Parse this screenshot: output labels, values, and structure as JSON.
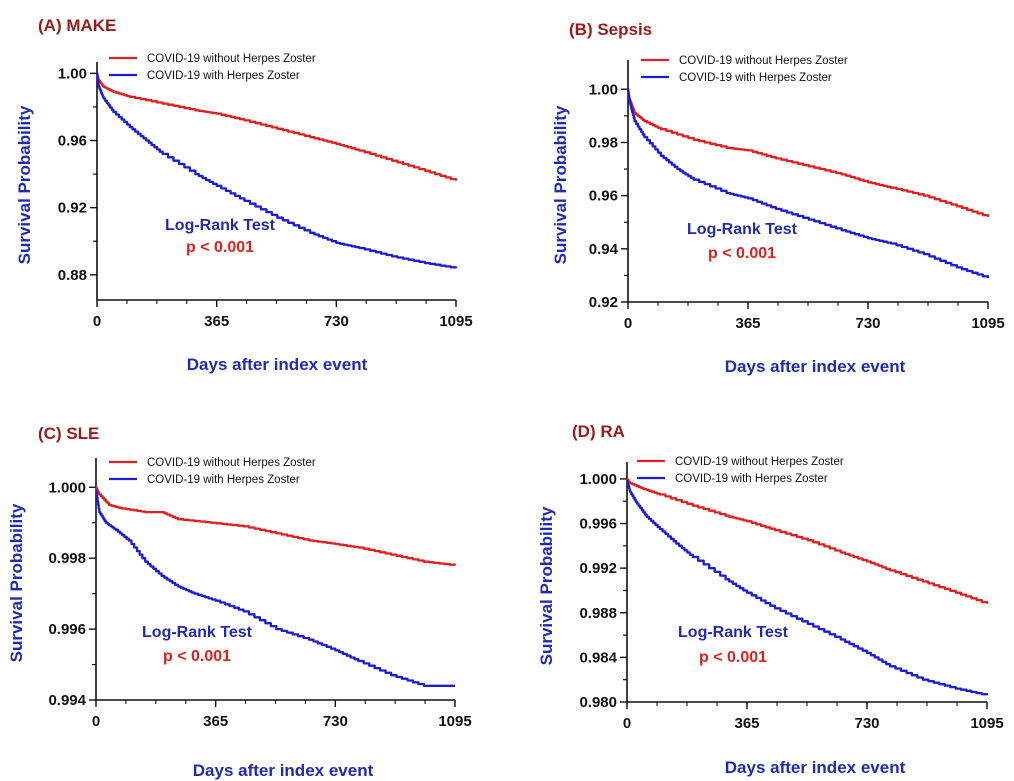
{
  "colors": {
    "title": "#9b1b1b",
    "axis_label": "#1f2bb3",
    "without": "#e02020",
    "with": "#1c1cd6",
    "log_rank": "#1f2bb3",
    "p_value": "#e02020",
    "axis": "#111111"
  },
  "chart_data": [
    {
      "type": "line",
      "panel_title": "(A) MAKE",
      "xlabel": "Days after index event",
      "ylabel": "Survival Probability",
      "xlim": [
        0,
        1095
      ],
      "ylim": [
        0.865,
        1.002
      ],
      "xticks": [
        "0",
        "365",
        "730",
        "1095"
      ],
      "yticks": [
        {
          "value": 1.0,
          "label": "1.00"
        },
        {
          "value": 0.96,
          "label": "0.96"
        },
        {
          "value": 0.92,
          "label": "0.92"
        },
        {
          "value": 0.88,
          "label": "0.88"
        }
      ],
      "grid": false,
      "legend_position": "top-left",
      "test_label": "Log-Rank Test",
      "p_value": "p < 0.001",
      "series": [
        {
          "name": "COVID-19 without Herpes Zoster",
          "color": "#e02020",
          "x": [
            0,
            5,
            20,
            50,
            100,
            200,
            300,
            365,
            450,
            550,
            650,
            730,
            800,
            900,
            1000,
            1095
          ],
          "y": [
            1.0,
            0.996,
            0.992,
            0.989,
            0.986,
            0.982,
            0.978,
            0.976,
            0.972,
            0.967,
            0.962,
            0.958,
            0.954,
            0.948,
            0.942,
            0.936
          ]
        },
        {
          "name": "COVID-19 with Herpes Zoster",
          "color": "#1c1cd6",
          "x": [
            0,
            5,
            20,
            50,
            100,
            150,
            200,
            300,
            365,
            450,
            550,
            650,
            730,
            800,
            900,
            1000,
            1095
          ],
          "y": [
            1.0,
            0.992,
            0.985,
            0.977,
            0.968,
            0.96,
            0.952,
            0.94,
            0.933,
            0.924,
            0.914,
            0.905,
            0.899,
            0.896,
            0.891,
            0.887,
            0.884
          ]
        }
      ]
    },
    {
      "type": "line",
      "panel_title": "(B) Sepsis",
      "xlabel": "Days after index event",
      "ylabel": "Survival Probability",
      "xlim": [
        0,
        1095
      ],
      "ylim": [
        0.92,
        1.008
      ],
      "xticks": [
        "0",
        "365",
        "730",
        "1095"
      ],
      "yticks": [
        {
          "value": 1.0,
          "label": "1.00"
        },
        {
          "value": 0.98,
          "label": "0.98"
        },
        {
          "value": 0.96,
          "label": "0.96"
        },
        {
          "value": 0.94,
          "label": "0.94"
        },
        {
          "value": 0.92,
          "label": "0.92"
        }
      ],
      "grid": false,
      "legend_position": "top-left",
      "test_label": "Log-Rank Test",
      "p_value": "p < 0.001",
      "series": [
        {
          "name": "COVID-19 without Herpes Zoster",
          "color": "#e02020",
          "x": [
            0,
            5,
            20,
            50,
            100,
            200,
            300,
            365,
            450,
            550,
            650,
            730,
            800,
            900,
            1000,
            1095
          ],
          "y": [
            1.0,
            0.996,
            0.991,
            0.988,
            0.985,
            0.981,
            0.978,
            0.977,
            0.974,
            0.971,
            0.968,
            0.965,
            0.963,
            0.96,
            0.956,
            0.952
          ]
        },
        {
          "name": "COVID-19 with Herpes Zoster",
          "color": "#1c1cd6",
          "x": [
            0,
            5,
            20,
            50,
            100,
            150,
            200,
            300,
            365,
            450,
            550,
            650,
            730,
            800,
            900,
            1000,
            1095
          ],
          "y": [
            1.0,
            0.995,
            0.988,
            0.982,
            0.975,
            0.97,
            0.966,
            0.961,
            0.959,
            0.955,
            0.951,
            0.947,
            0.944,
            0.942,
            0.938,
            0.933,
            0.929
          ]
        }
      ]
    },
    {
      "type": "line",
      "panel_title": "(C) SLE",
      "xlabel": "Days after index event",
      "ylabel": "Survival Probability",
      "xlim": [
        0,
        1095
      ],
      "ylim": [
        0.994,
        1.0006
      ],
      "xticks": [
        "0",
        "365",
        "730",
        "1095"
      ],
      "yticks": [
        {
          "value": 1.0,
          "label": "1.000"
        },
        {
          "value": 0.998,
          "label": "0.998"
        },
        {
          "value": 0.996,
          "label": "0.996"
        },
        {
          "value": 0.994,
          "label": "0.994"
        }
      ],
      "grid": false,
      "legend_position": "top-left",
      "test_label": "Log-Rank Test",
      "p_value": "p < 0.001",
      "series": [
        {
          "name": "COVID-19 without Herpes Zoster",
          "color": "#e02020",
          "x": [
            0,
            10,
            40,
            80,
            150,
            200,
            250,
            350,
            450,
            550,
            650,
            730,
            800,
            900,
            1000,
            1095
          ],
          "y": [
            1.0,
            0.9998,
            0.9995,
            0.9994,
            0.9993,
            0.9993,
            0.9991,
            0.999,
            0.9989,
            0.9987,
            0.9985,
            0.9984,
            0.9983,
            0.9981,
            0.9979,
            0.9978
          ]
        },
        {
          "name": "COVID-19 with Herpes Zoster",
          "color": "#1c1cd6",
          "x": [
            0,
            10,
            30,
            60,
            100,
            150,
            200,
            250,
            300,
            365,
            450,
            550,
            650,
            730,
            800,
            900,
            1000,
            1095
          ],
          "y": [
            0.9999,
            0.9993,
            0.999,
            0.9988,
            0.9985,
            0.9979,
            0.9975,
            0.9972,
            0.997,
            0.9968,
            0.9965,
            0.996,
            0.9957,
            0.9954,
            0.9951,
            0.9947,
            0.9944,
            0.9944
          ]
        }
      ]
    },
    {
      "type": "line",
      "panel_title": "(D) RA",
      "xlabel": "Days after index event",
      "ylabel": "Survival Probability",
      "xlim": [
        0,
        1095
      ],
      "ylim": [
        0.98,
        1.0008
      ],
      "xticks": [
        "0",
        "365",
        "730",
        "1095"
      ],
      "yticks": [
        {
          "value": 1.0,
          "label": "1.000"
        },
        {
          "value": 0.996,
          "label": "0.996"
        },
        {
          "value": 0.992,
          "label": "0.992"
        },
        {
          "value": 0.988,
          "label": "0.988"
        },
        {
          "value": 0.984,
          "label": "0.984"
        },
        {
          "value": 0.98,
          "label": "0.980"
        }
      ],
      "grid": false,
      "legend_position": "top-left",
      "test_label": "Log-Rank Test",
      "p_value": "p < 0.001",
      "series": [
        {
          "name": "COVID-19 without Herpes Zoster",
          "color": "#e02020",
          "x": [
            0,
            10,
            50,
            100,
            200,
            300,
            365,
            450,
            550,
            650,
            730,
            800,
            900,
            1000,
            1095
          ],
          "y": [
            1.0,
            0.9996,
            0.9991,
            0.9986,
            0.9976,
            0.9967,
            0.9962,
            0.9954,
            0.9945,
            0.9934,
            0.9926,
            0.9918,
            0.9908,
            0.9898,
            0.9888
          ]
        },
        {
          "name": "COVID-19 with Herpes Zoster",
          "color": "#1c1cd6",
          "x": [
            0,
            10,
            30,
            60,
            100,
            150,
            200,
            300,
            365,
            450,
            550,
            650,
            730,
            800,
            900,
            1000,
            1095
          ],
          "y": [
            0.9998,
            0.9988,
            0.9978,
            0.9966,
            0.9955,
            0.9942,
            0.993,
            0.991,
            0.9898,
            0.9884,
            0.987,
            0.9856,
            0.9844,
            0.9832,
            0.982,
            0.9812,
            0.9806
          ]
        }
      ]
    }
  ]
}
